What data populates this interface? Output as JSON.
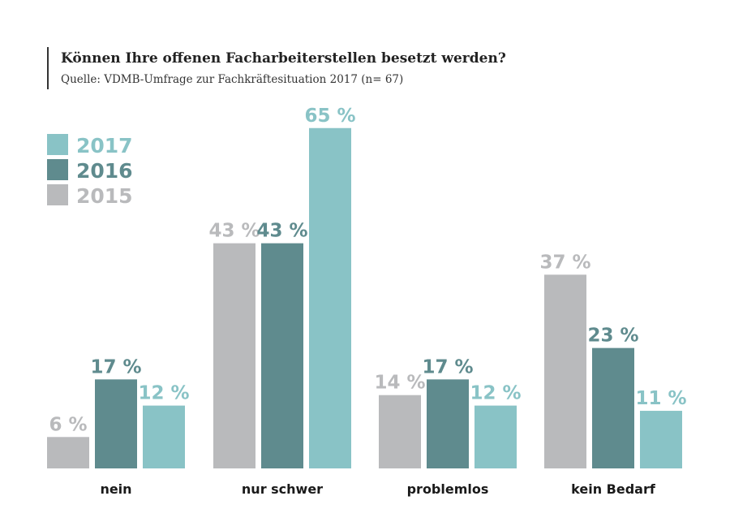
{
  "colors": {
    "2017": "#89c3c6",
    "2016": "#5f8b8e",
    "2015": "#b9babc"
  },
  "chart_data": {
    "type": "bar",
    "title": "Können Ihre offenen Facharbeiterstellen besetzt werden?",
    "subtitle": "Quelle: VDMB-Umfrage zur Fachkräftesituation 2017 (n= 67)",
    "categories": [
      "nein",
      "nur schwer",
      "problemlos",
      "kein Bedarf"
    ],
    "series": [
      {
        "name": "2015",
        "values": [
          6,
          43,
          14,
          37
        ],
        "labels": [
          "6 %",
          "43 %",
          "14 %",
          "37 %"
        ]
      },
      {
        "name": "2016",
        "values": [
          17,
          43,
          17,
          23
        ],
        "labels": [
          "17 %",
          "43 %",
          "17 %",
          "23 %"
        ]
      },
      {
        "name": "2017",
        "values": [
          12,
          65,
          12,
          11
        ],
        "labels": [
          "12 %",
          "65 %",
          "12 %",
          "11 %"
        ]
      }
    ],
    "legend": [
      "2017",
      "2016",
      "2015"
    ],
    "legend_position": "top-left",
    "unit": "%",
    "ylim": [
      0,
      65
    ],
    "grid": false
  }
}
